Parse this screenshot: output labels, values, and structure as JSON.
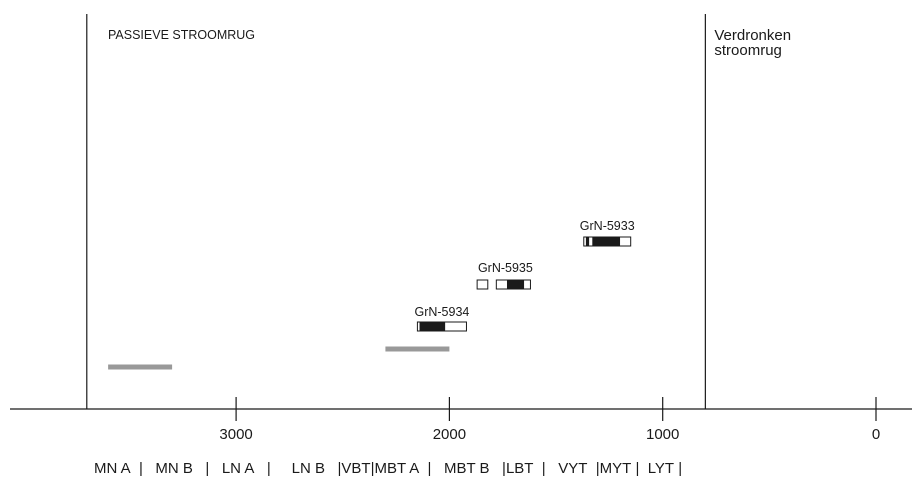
{
  "chart_data": {
    "type": "range",
    "xlabel": "",
    "ylabel": "",
    "x_reversed": true,
    "x_ticks": [
      "3000",
      "2000",
      "1000",
      "0"
    ],
    "phases": [
      {
        "label": "PASSIEVE STROOMRUG",
        "from": 3700,
        "to": 800
      },
      {
        "label": "Verdronken stroomrug",
        "from": 800,
        "to": null
      }
    ],
    "periods": [
      "MN A",
      "MN B",
      "LN A",
      "LN B",
      "VBT",
      "MBT A",
      "MBT B",
      "LBT",
      "VYT",
      "MYT",
      "LYT"
    ],
    "samples": [
      {
        "label": "GrN-5933",
        "range_2sigma": [
          1370,
          1150
        ],
        "range_1sigma": [
          1330,
          1200
        ],
        "extra_1sigma": [
          1360,
          1345
        ]
      },
      {
        "label": "GrN-5935",
        "range_2sigma": [
          1780,
          1620
        ],
        "range_1sigma": [
          1730,
          1650
        ],
        "extra_2sigma": [
          1870,
          1820
        ]
      },
      {
        "label": "GrN-5934",
        "range_2sigma": [
          2150,
          1920
        ],
        "range_1sigma": [
          2140,
          2020
        ]
      }
    ],
    "gray_ranges": [
      {
        "from": 3600,
        "to": 3300
      },
      {
        "from": 2300,
        "to": 2000
      }
    ],
    "colors": {
      "line": "#1a1a1a",
      "gray_bar": "#999999",
      "box_fill": "#ffffff",
      "box_dark": "#1a1a1a"
    }
  }
}
